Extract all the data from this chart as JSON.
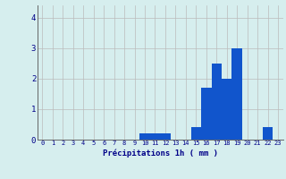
{
  "values": [
    0,
    0,
    0,
    0,
    0,
    0,
    0,
    0,
    0,
    0,
    0.2,
    0.2,
    0.2,
    0,
    0,
    0.4,
    1.7,
    2.5,
    2.0,
    3.0,
    0,
    0,
    0.4,
    0
  ],
  "xlabel": "Précipitations 1h ( mm )",
  "ylim": [
    0,
    4.4
  ],
  "xlim": [
    -0.5,
    23.5
  ],
  "yticks": [
    0,
    1,
    2,
    3,
    4
  ],
  "xticks": [
    0,
    1,
    2,
    3,
    4,
    5,
    6,
    7,
    8,
    9,
    10,
    11,
    12,
    13,
    14,
    15,
    16,
    17,
    18,
    19,
    20,
    21,
    22,
    23
  ],
  "bar_color": "#1155cc",
  "background_color": "#d6eeee",
  "grid_color": "#bbbbbb",
  "tick_label_color": "#000088",
  "xlabel_color": "#000088"
}
